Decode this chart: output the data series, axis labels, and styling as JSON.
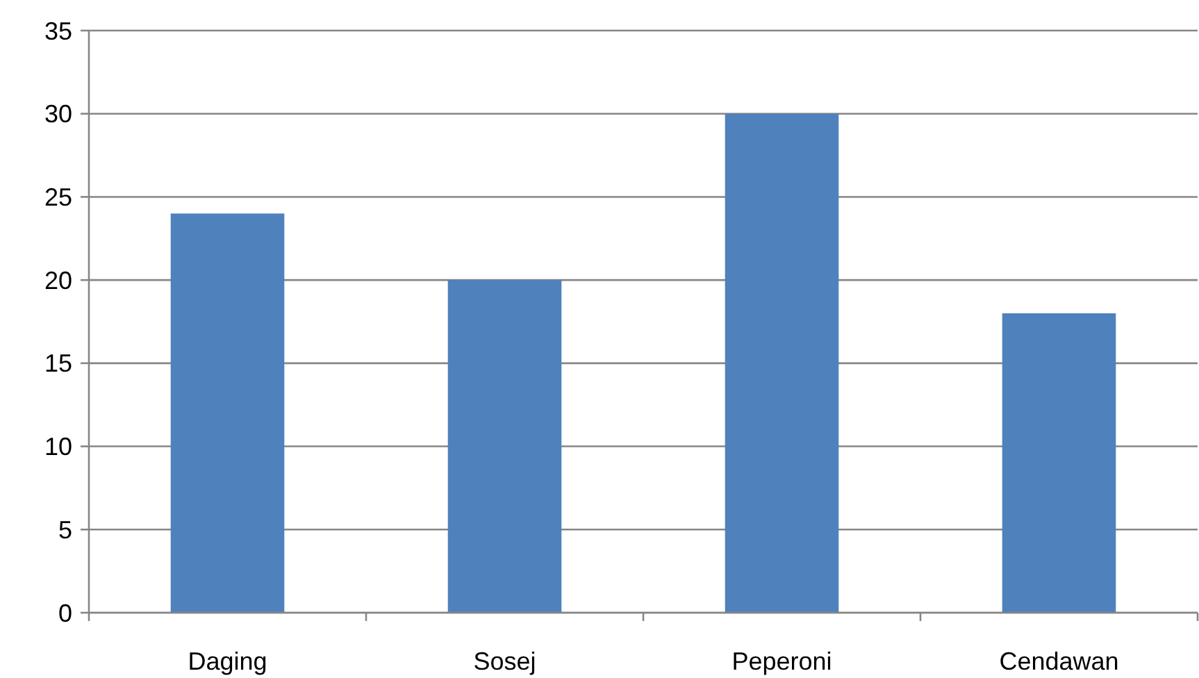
{
  "chart_data": {
    "type": "bar",
    "categories": [
      "Daging",
      "Sosej",
      "Peperoni",
      "Cendawan"
    ],
    "values": [
      24,
      20,
      30,
      18
    ],
    "color": "#4f81bd",
    "ylim": [
      0,
      35
    ],
    "yticks": [
      0,
      5,
      10,
      15,
      20,
      25,
      30,
      35
    ],
    "grid": "y"
  }
}
